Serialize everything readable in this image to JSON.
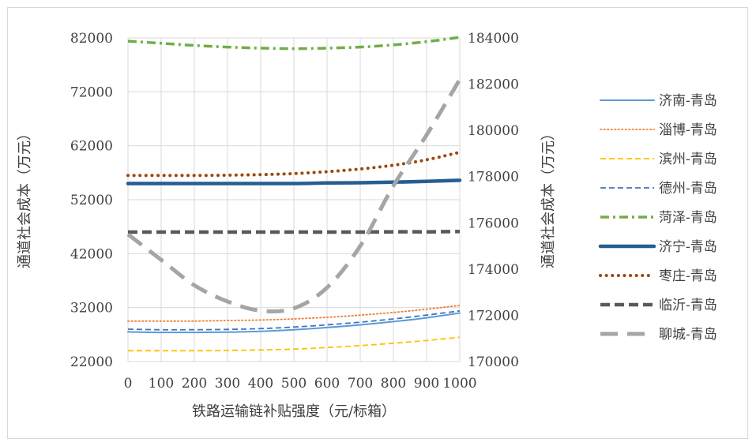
{
  "chart_data": {
    "type": "line",
    "title": "",
    "xlabel": "铁路运输链补贴强度（元/标箱）",
    "ylabel_left": "通道社会成本（万元）",
    "ylabel_right": "通道社会成本（万元）",
    "x": [
      0,
      100,
      200,
      300,
      400,
      500,
      600,
      700,
      800,
      900,
      1000
    ],
    "x_tick_labels": [
      "0",
      "100",
      "200",
      "300",
      "400",
      "500",
      "600",
      "700",
      "800",
      "900",
      "1000"
    ],
    "ylim_left": [
      22000,
      82000
    ],
    "yticks_left": [
      22000,
      32000,
      42000,
      52000,
      62000,
      72000,
      82000
    ],
    "ylim_right": [
      170000,
      184000
    ],
    "yticks_right": [
      170000,
      172000,
      174000,
      176000,
      178000,
      180000,
      182000,
      184000
    ],
    "grid": true,
    "legend_position": "right",
    "series": [
      {
        "name": "济南-青岛",
        "axis": "left",
        "color": "#5b9bd5",
        "style": "solid-thin",
        "values": [
          27500,
          27400,
          27400,
          27450,
          27600,
          27900,
          28300,
          28800,
          29400,
          30100,
          31000
        ]
      },
      {
        "name": "淄博-青岛",
        "axis": "left",
        "color": "#ed7d31",
        "style": "dotted-thin",
        "values": [
          29500,
          29500,
          29500,
          29600,
          29700,
          29900,
          30200,
          30600,
          31100,
          31700,
          32400
        ]
      },
      {
        "name": "滨州-青岛",
        "axis": "left",
        "color": "#ffc000",
        "style": "dashed-thin",
        "values": [
          24000,
          24000,
          24000,
          24050,
          24150,
          24300,
          24600,
          24950,
          25400,
          25900,
          26500
        ]
      },
      {
        "name": "德州-青岛",
        "axis": "left",
        "color": "#4472c4",
        "style": "dashed-thin",
        "values": [
          28000,
          27900,
          27900,
          27950,
          28100,
          28400,
          28800,
          29300,
          29900,
          30600,
          31400
        ]
      },
      {
        "name": "菏泽-青岛",
        "axis": "left",
        "color": "#70ad47",
        "style": "dashdot",
        "values": [
          81400,
          81000,
          80600,
          80300,
          80100,
          80000,
          80100,
          80300,
          80700,
          81300,
          82100
        ]
      },
      {
        "name": "济宁-青岛",
        "axis": "left",
        "color": "#255e91",
        "style": "solid-thick",
        "values": [
          55000,
          55000,
          55000,
          55000,
          55000,
          55000,
          55100,
          55150,
          55250,
          55400,
          55600
        ]
      },
      {
        "name": "枣庄-青岛",
        "axis": "left",
        "color": "#9e480e",
        "style": "dotted-thick",
        "values": [
          56500,
          56500,
          56500,
          56550,
          56650,
          56850,
          57200,
          57700,
          58400,
          59400,
          60800
        ]
      },
      {
        "name": "临沂-青岛",
        "axis": "left",
        "color": "#595959",
        "style": "dashed-thick",
        "values": [
          46000,
          46000,
          46000,
          46000,
          46000,
          46000,
          46000,
          46000,
          46050,
          46050,
          46100
        ]
      },
      {
        "name": "聊城-青岛",
        "axis": "right",
        "color": "#a5a5a5",
        "style": "longdash-thick",
        "values": [
          175500,
          174400,
          173300,
          172600,
          172200,
          172300,
          173200,
          175000,
          177600,
          179800,
          182200
        ]
      }
    ]
  }
}
